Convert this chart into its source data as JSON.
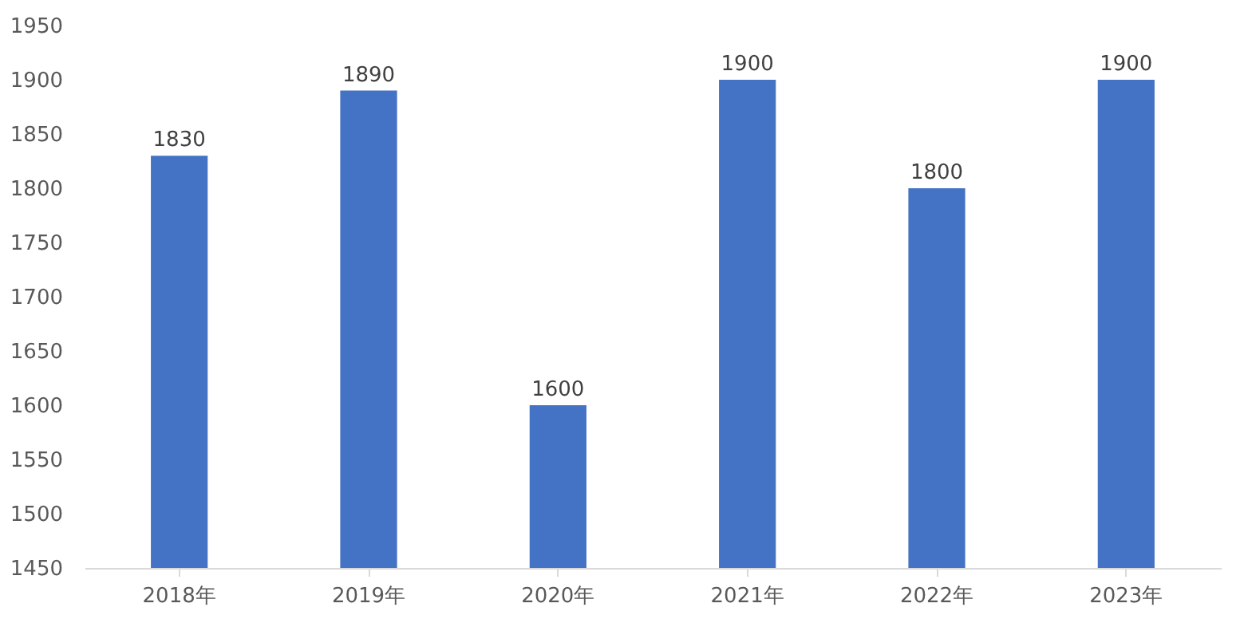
{
  "chart_data": {
    "type": "bar",
    "categories": [
      "2018年",
      "2019年",
      "2020年",
      "2021年",
      "2022年",
      "2023年"
    ],
    "values": [
      1830,
      1890,
      1600,
      1900,
      1800,
      1900
    ],
    "color": "#4472c4",
    "ylim": [
      1450,
      1950
    ],
    "yticks": [
      1450,
      1500,
      1550,
      1600,
      1650,
      1700,
      1750,
      1800,
      1850,
      1900,
      1950
    ],
    "grid": false,
    "data_labels": true
  }
}
